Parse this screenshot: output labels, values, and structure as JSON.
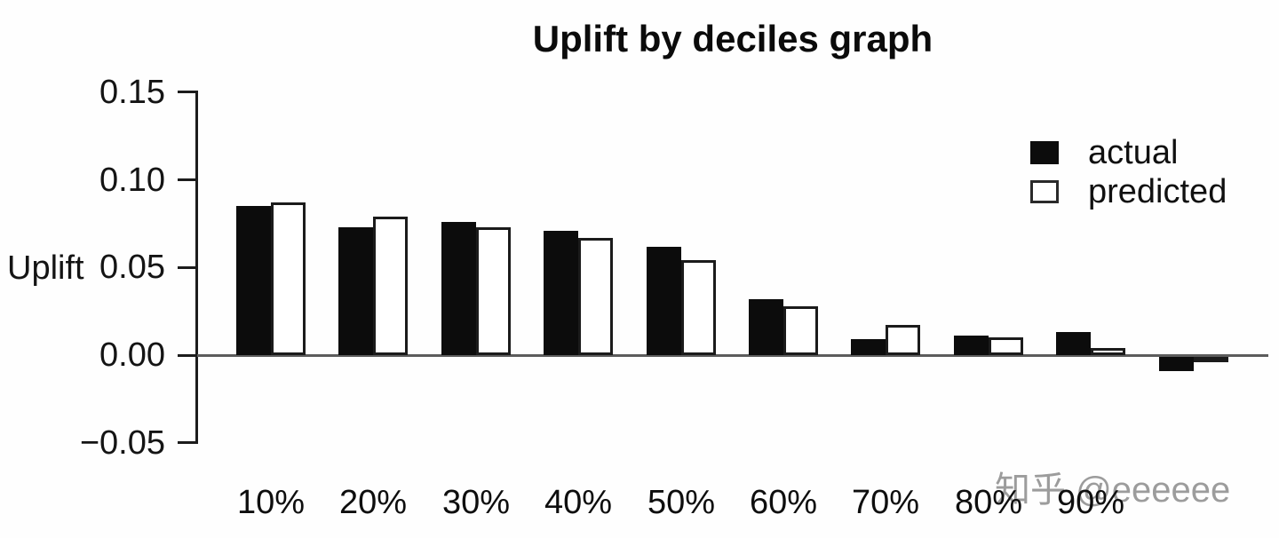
{
  "title": "Uplift by deciles graph",
  "y_axis": {
    "label": "Uplift",
    "ticks": [
      "0.15",
      "0.10",
      "0.05",
      "0.00",
      "−0.05"
    ]
  },
  "x_axis": {
    "labels": [
      "10%",
      "20%",
      "30%",
      "40%",
      "50%",
      "60%",
      "70%",
      "80%",
      "90%",
      ""
    ]
  },
  "legend": [
    {
      "label": "actual",
      "fill": "#000000"
    },
    {
      "label": "predicted",
      "fill": "#ffffff"
    }
  ],
  "watermark": "知乎 @eeeeee",
  "colors": {
    "bar_actual": "#000000",
    "bar_predicted": "#ffffff",
    "bar_outline": "#1b1b1b",
    "axis": "#1c1c1c",
    "zero_line": "#5c5c5c",
    "watermark": "#9c9c9c",
    "background": "#ffffff"
  },
  "chart_data": {
    "type": "bar",
    "title": "Uplift by deciles graph",
    "xlabel": "",
    "ylabel": "Uplift",
    "categories": [
      "10%",
      "20%",
      "30%",
      "40%",
      "50%",
      "60%",
      "70%",
      "80%",
      "90%",
      ""
    ],
    "series": [
      {
        "name": "actual",
        "color": "#000000",
        "values": [
          0.085,
          0.073,
          0.076,
          0.071,
          0.062,
          0.032,
          0.009,
          0.011,
          0.013,
          -0.008
        ]
      },
      {
        "name": "predicted",
        "color": "#ffffff",
        "values": [
          0.087,
          0.079,
          0.073,
          0.067,
          0.054,
          0.028,
          0.017,
          0.01,
          0.004,
          -0.003
        ]
      }
    ],
    "ylim": [
      -0.05,
      0.15
    ],
    "yticks": [
      0.15,
      0.1,
      0.05,
      0.0,
      -0.05
    ],
    "grid": false,
    "legend_position": "top-right",
    "baseline": 0
  }
}
